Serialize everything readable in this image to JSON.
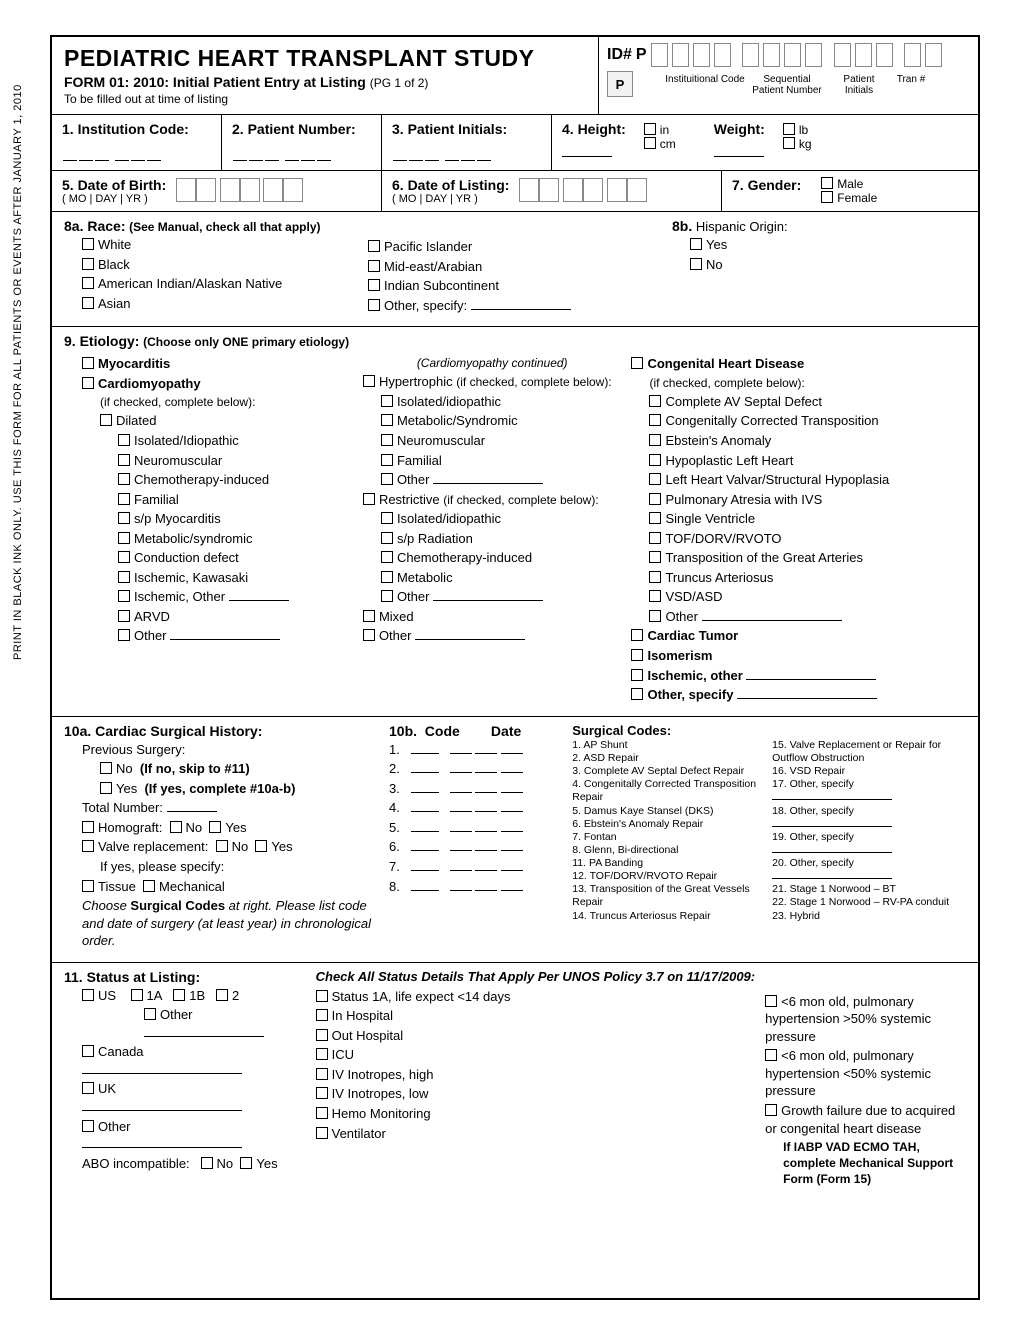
{
  "side_note": "PRINT IN BLACK INK ONLY. USE THIS FORM FOR ALL PATIENTS OR EVENTS AFTER JANUARY 1, 2010",
  "header": {
    "title": "PEDIATRIC HEART TRANSPLANT STUDY",
    "form_label": "FORM 01:",
    "form_desc": " 2010: Initial Patient Entry at Listing",
    "page": "(PG 1 of 2)",
    "fill_note": "To be filled out at time of listing",
    "id_label": "ID#",
    "id_prefix": "P",
    "cap_p": "P",
    "cap_inst": "Instituitional Code",
    "cap_seq": "Sequential Patient Number",
    "cap_init": "Patient Initials",
    "cap_tran": "Tran #"
  },
  "q1": "1.  Institution Code:",
  "q2": "2.  Patient Number:",
  "q3": "3.  Patient Initials:",
  "q4": {
    "h": "4.  Height:",
    "in": "in",
    "cm": "cm",
    "w": "Weight:",
    "lb": "lb",
    "kg": "kg"
  },
  "q5": {
    "t": "5.  Date of Birth:",
    "sub": "( MO | DAY | YR )"
  },
  "q6": {
    "t": "6.  Date of Listing:",
    "sub": "( MO | DAY | YR )"
  },
  "q7": {
    "t": "7.  Gender:",
    "m": "Male",
    "f": "Female"
  },
  "q8a": {
    "t": "8a. Race:",
    "note": "(See Manual, check all that apply)",
    "c1": [
      "White",
      "Black",
      "American Indian/Alaskan Native",
      "Asian"
    ],
    "c2_a": "Pacific Islander",
    "c2_b": "Mid-east/Arabian",
    "c2_c": "Indian Subcontinent",
    "c2_d": "Other, specify:"
  },
  "q8b": {
    "t": "8b.",
    "label": "Hispanic Origin:",
    "yes": "Yes",
    "no": "No"
  },
  "q9": {
    "t": "9.  Etiology:",
    "note": "(Choose only ONE primary etiology)",
    "myo": "Myocarditis",
    "cardio": "Cardiomyopathy",
    "cardio_note": "(if checked, complete below):",
    "dil": "Dilated",
    "dil_items": [
      "Isolated/Idiopathic",
      "Neuromuscular",
      "Chemotherapy-induced",
      "Familial",
      "s/p Myocarditis",
      "Metabolic/syndromic",
      "Conduction defect",
      "Ischemic, Kawasaki"
    ],
    "dil_isch_other": "Ischemic, Other",
    "arvd": "ARVD",
    "other": "Other",
    "mid_cap": "(Cardiomyopathy continued)",
    "hyp": "Hypertrophic",
    "hyp_note": "(if checked, complete below):",
    "hyp_items": [
      "Isolated/idiopathic",
      "Metabolic/Syndromic",
      "Neuromuscular",
      "Familial"
    ],
    "restr": "Restrictive",
    "restr_note": "(if checked, complete below):",
    "restr_items": [
      "Isolated/idiopathic",
      "s/p Radiation",
      "Chemotherapy-induced",
      "Metabolic"
    ],
    "mixed": "Mixed",
    "chd": "Congenital Heart Disease",
    "chd_note": "(if checked, complete below):",
    "chd_items": [
      "Complete AV Septal Defect",
      "Congenitally Corrected Transposition",
      "Ebstein's Anomaly",
      "Hypoplastic Left Heart",
      "Left Heart Valvar/Structural Hypoplasia",
      "Pulmonary Atresia with IVS",
      "Single Ventricle",
      "TOF/DORV/RVOTO",
      "Transposition of the Great Arteries",
      "Truncus Arteriosus",
      "VSD/ASD"
    ],
    "ctumor": "Cardiac Tumor",
    "iso": "Isomerism",
    "isch": "Ischemic, other",
    "ospec": "Other, specify"
  },
  "q10a": {
    "t": "10a. Cardiac Surgical History:",
    "prev": "Previous Surgery:",
    "no": "No",
    "no_note": "(If no, skip to #11)",
    "yes": "Yes",
    "yes_note": "(If yes, complete #10a-b)",
    "total": "Total Number:",
    "homo": "Homograft:",
    "valve": "Valve replacement:",
    "ifyes": "If yes, please specify:",
    "tissue": "Tissue",
    "mech": "Mechanical",
    "inst1": "Choose ",
    "inst2": "Surgical Codes",
    "inst3": " at right. Please list code and date of surgery (at least year) in chronological order."
  },
  "q10b": {
    "t": "10b.",
    "code": "Code",
    "date": "Date"
  },
  "surgical": {
    "t": "Surgical Codes:",
    "c1": [
      "1.  AP Shunt",
      "2.  ASD Repair",
      "3.  Complete AV Septal Defect Repair",
      "4.  Congenitally Corrected Transposition Repair",
      "5.  Damus Kaye Stansel (DKS)",
      "6.  Ebstein's Anomaly Repair",
      "7.  Fontan",
      "8.  Glenn, Bi-directional",
      "11. PA Banding",
      "12. TOF/DORV/RVOTO Repair",
      "13. Transposition of the Great Vessels Repair",
      "14. Truncus Arteriosus  Repair"
    ],
    "c2": [
      "15. Valve Replacement or Repair  for Outflow Obstruction",
      "16. VSD Repair",
      "17. Other, specify",
      "18. Other, specify",
      "19. Other, specify",
      "20. Other, specify",
      "21. Stage 1 Norwood – BT",
      "22. Stage 1 Norwood – RV-PA conduit",
      "23. Hybrid"
    ]
  },
  "q11": {
    "t": "11. Status at Listing:",
    "us": "US",
    "s1a": "1A",
    "s1b": "1B",
    "s2": "2",
    "other": "Other",
    "can": "Canada",
    "uk": "UK",
    "oth": "Other",
    "abo": "ABO incompatible:",
    "no": "No",
    "yes": "Yes",
    "hd": "Check All Status Details That Apply Per UNOS Policy 3.7 on 11/17/2009:",
    "m1": "Status 1A, life expect <14 days",
    "m2": "In Hospital",
    "m3": "Out Hospital",
    "m4": "ICU",
    "m5": "IV Inotropes, high",
    "m6": "IV Inotropes, low",
    "m7": "Hemo Monitoring",
    "m8": "Ventilator",
    "r1": "<6 mon old, pulmonary hypertension >50% systemic pressure",
    "r2": "<6 mon old, pulmonary hypertension <50% systemic pressure",
    "r3": "Growth failure due to acquired or congenital heart disease",
    "r4": "If IABP VAD ECMO TAH, complete Mechanical Support Form (Form 15)"
  }
}
